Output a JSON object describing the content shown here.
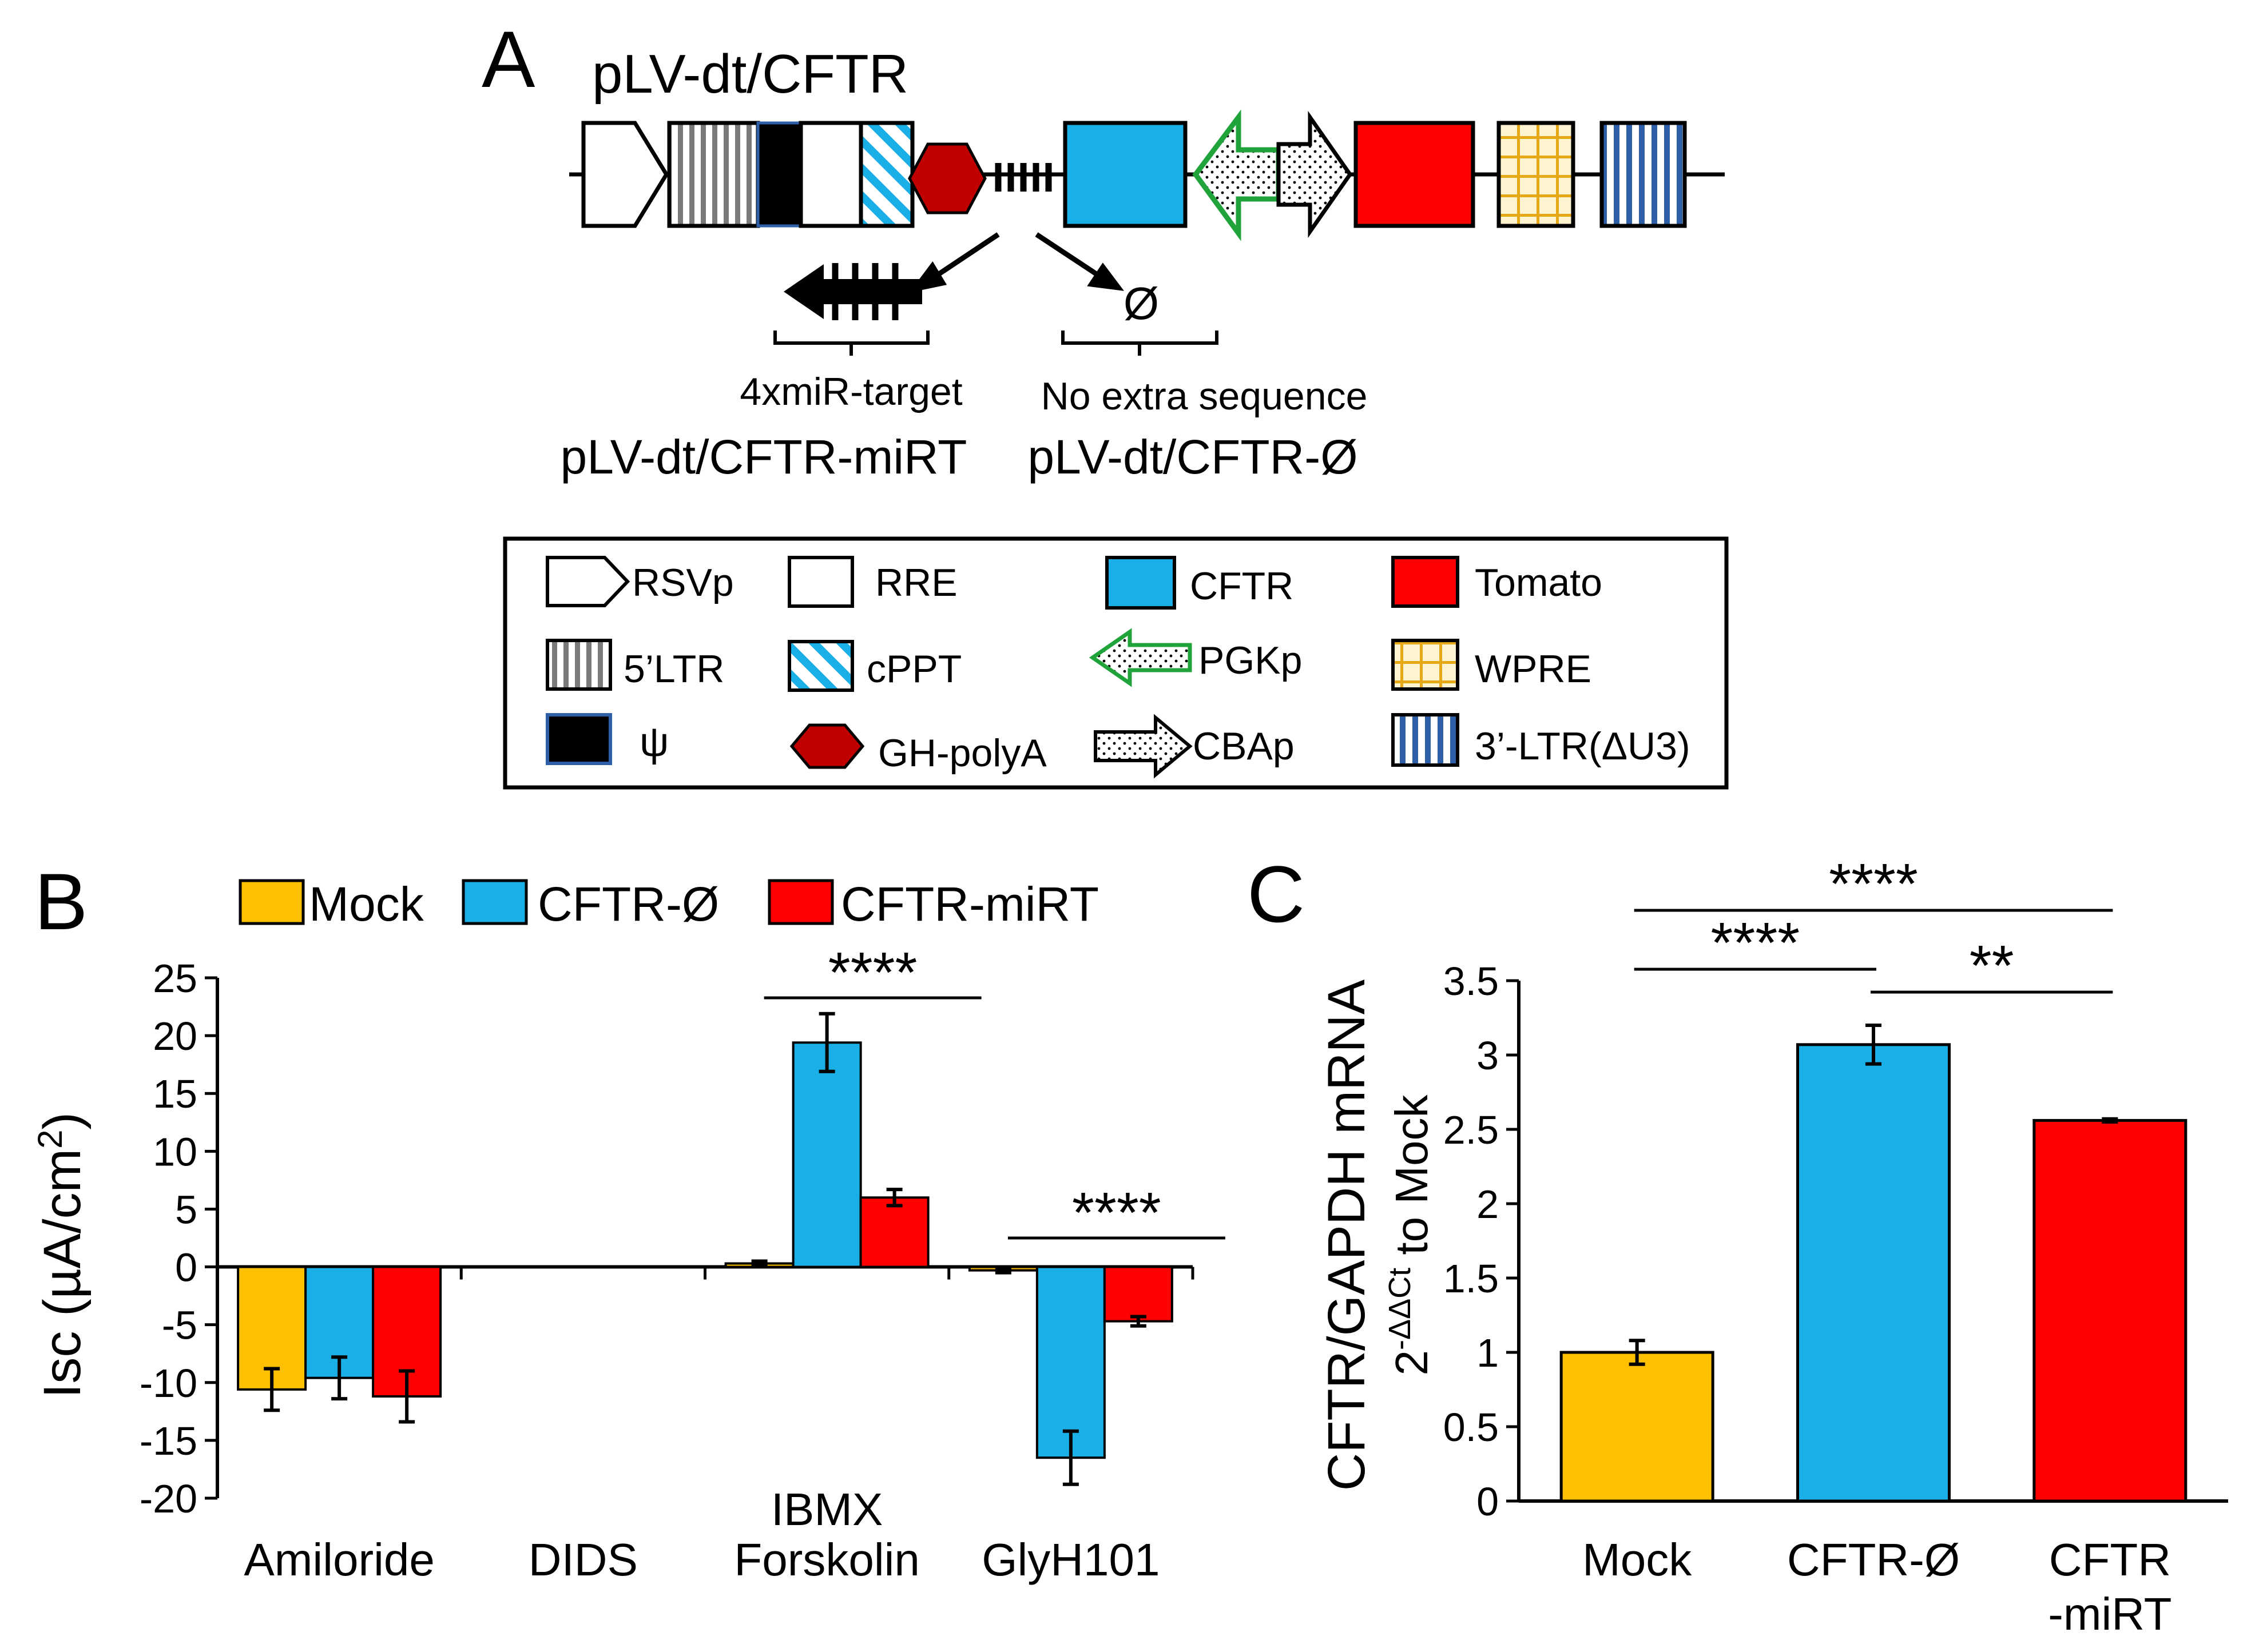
{
  "panels": {
    "a": {
      "letter": "A",
      "construct_title": "pLV-dt/CFTR",
      "null_symbol": "Ø",
      "mirt_caption": "4xmiR-target",
      "mirt_name": "pLV-dt/CFTR-miRT",
      "null_caption": "No extra sequence",
      "null_name": "pLV-dt/CFTR-Ø"
    },
    "b": {
      "letter": "B"
    },
    "c": {
      "letter": "C"
    }
  },
  "legend_box": {
    "rsvp": "RSVp",
    "ltr5": "5’LTR",
    "psi": "ψ",
    "rre": "RRE",
    "cppt": "cPPT",
    "ghpolya": "GH-polyA",
    "cftr": "CFTR",
    "pgkp": "PGKp",
    "cbap": "CBAp",
    "tomato": "Tomato",
    "wpre": "WPRE",
    "ltr3": "3’-LTR(ΔU3)"
  },
  "colors": {
    "mock": "#FFC000",
    "cftr_null": "#1AAFE6",
    "cftr_mirt": "#FF0000",
    "polya": "#C00000",
    "pgk_green": "#21A33C",
    "ltr3_blue": "#2E5FA8",
    "wpre_gold": "#E6A817"
  },
  "chart_data": [
    {
      "type": "bar",
      "panel": "B",
      "ylabel": "Isc (µA/cm²)",
      "ylabel_main": "Isc (µA/cm",
      "ylabel_sup": "2",
      "ylabel_end": ")",
      "ylim": [
        -20,
        25
      ],
      "ticks": [
        25,
        20,
        15,
        10,
        5,
        0,
        -5,
        -10,
        -15,
        -20
      ],
      "category_lines": [
        [
          "Amiloride"
        ],
        [
          "DIDS"
        ],
        [
          "IBMX",
          "Forskolin"
        ],
        [
          "GlyH101"
        ]
      ],
      "categories": [
        "Amiloride",
        "DIDS",
        "IBMX Forskolin",
        "GlyH101"
      ],
      "legend": [
        "Mock",
        "CFTR-Ø",
        "CFTR-miRT"
      ],
      "series": [
        {
          "name": "Mock",
          "values": [
            -10.6,
            null,
            0.3,
            -0.3
          ],
          "errors": [
            1.8,
            null,
            0.2,
            0.2
          ]
        },
        {
          "name": "CFTR-Ø",
          "values": [
            -9.6,
            null,
            19.4,
            -16.5
          ],
          "errors": [
            1.8,
            null,
            2.5,
            2.3
          ]
        },
        {
          "name": "CFTR-miRT",
          "values": [
            -11.2,
            null,
            6.0,
            -4.7
          ],
          "errors": [
            2.2,
            null,
            0.7,
            0.4
          ]
        }
      ],
      "significance": [
        {
          "category": "IBMX Forskolin",
          "label": "****"
        },
        {
          "category": "GlyH101",
          "label": "****"
        }
      ]
    },
    {
      "type": "bar",
      "panel": "C",
      "ylabel": "CFTR/GAPDH mRNA",
      "ylabel2_base": "2",
      "ylabel2_sup": "-ΔΔCt",
      "ylabel2_rest": " to Mock",
      "ylim": [
        0,
        3.5
      ],
      "ticks": [
        "3.5",
        "3",
        "2.5",
        "2",
        "1.5",
        "1",
        "0.5",
        "0"
      ],
      "category_lines": [
        [
          "Mock"
        ],
        [
          "CFTR-Ø"
        ],
        [
          "CFTR",
          "-miRT"
        ]
      ],
      "categories": [
        "Mock",
        "CFTR-Ø",
        "CFTR -miRT"
      ],
      "values": [
        1.0,
        3.07,
        2.56
      ],
      "errors": [
        0.08,
        0.13,
        0.01
      ],
      "significance": [
        {
          "from": "Mock",
          "to": "CFTR -miRT",
          "label": "****"
        },
        {
          "from": "Mock",
          "to": "CFTR-Ø",
          "label": "****"
        },
        {
          "from": "CFTR-Ø",
          "to": "CFTR -miRT",
          "label": "**"
        }
      ]
    }
  ]
}
